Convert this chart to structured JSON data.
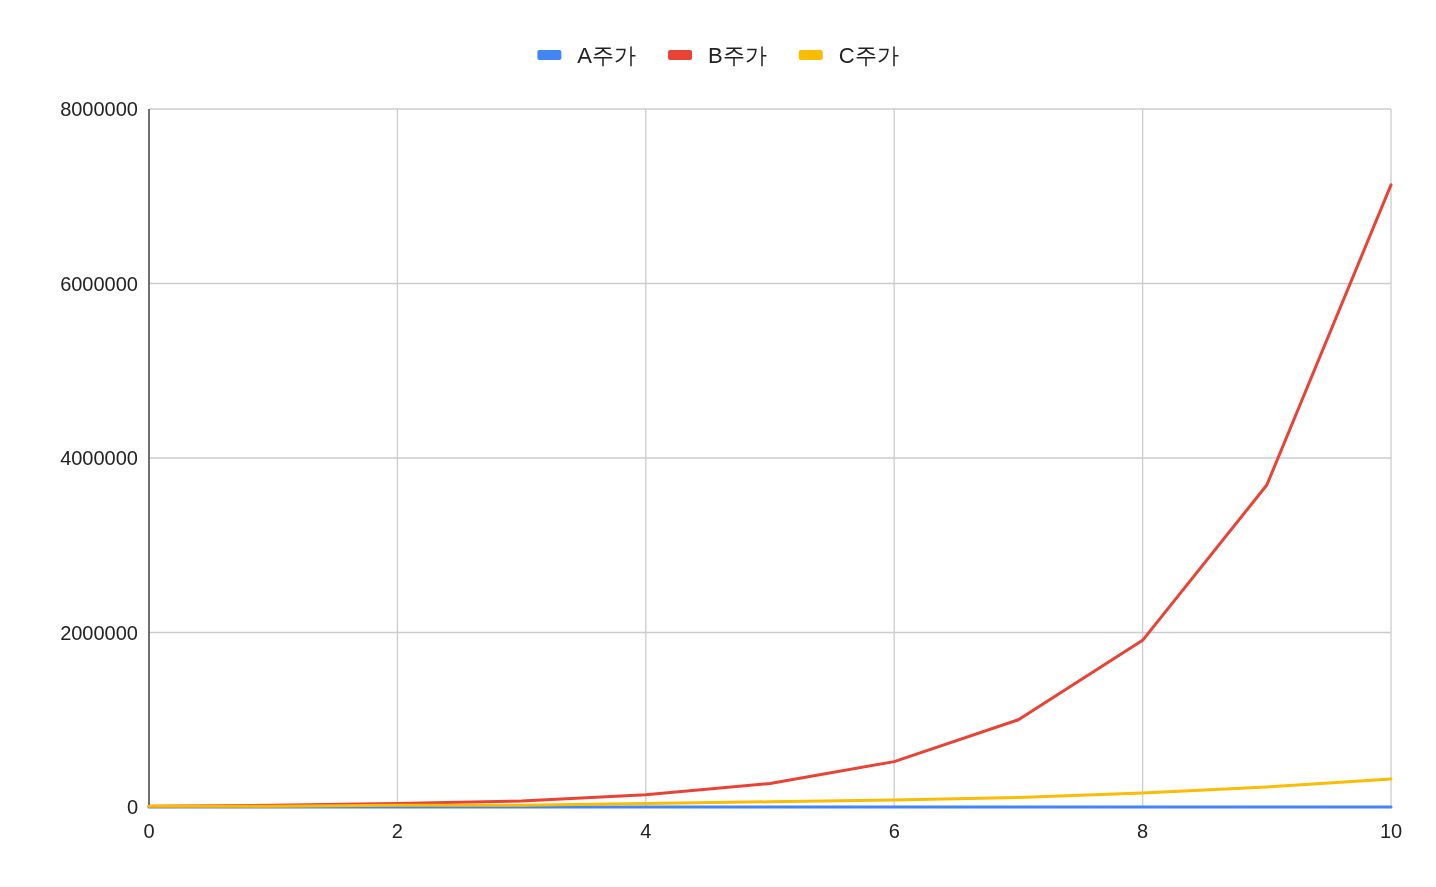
{
  "chart_data": {
    "type": "line",
    "x": [
      0,
      1,
      2,
      3,
      4,
      5,
      6,
      7,
      8,
      9,
      10
    ],
    "series": [
      {
        "name": "A주가",
        "color": "#4285f4",
        "values": [
          0,
          0,
          0,
          0,
          0,
          0,
          0,
          0,
          0,
          0,
          0
        ]
      },
      {
        "name": "B주가",
        "color": "#ea4335",
        "values": [
          10000,
          20000,
          40000,
          70000,
          140000,
          270000,
          520000,
          1000000,
          1910000,
          3690000,
          7130000
        ]
      },
      {
        "name": "C주가",
        "color": "#fbbc04",
        "values": [
          10000,
          10000,
          20000,
          20000,
          40000,
          60000,
          80000,
          110000,
          160000,
          230000,
          320000
        ]
      }
    ],
    "xlim": [
      0,
      10
    ],
    "xticks": [
      0,
      2,
      4,
      6,
      8,
      10
    ],
    "ylim": [
      0,
      8000000
    ],
    "yticks": [
      0,
      2000000,
      4000000,
      6000000,
      8000000
    ],
    "grid": true,
    "legend": "top",
    "marker": "none",
    "line_style": "solid"
  }
}
